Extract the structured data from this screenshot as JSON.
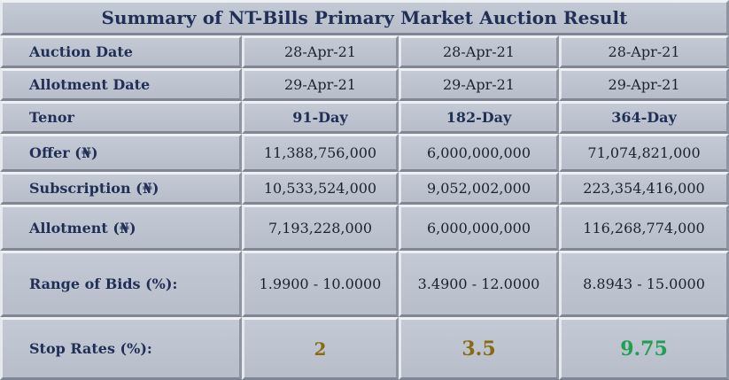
{
  "title": "Summary of NT-Bills Primary Market Auction Result",
  "rows": [
    {
      "label": "Auction Date",
      "values": [
        "28-Apr-21",
        "28-Apr-21",
        "28-Apr-21"
      ]
    },
    {
      "label": "Allotment Date",
      "values": [
        "29-Apr-21",
        "29-Apr-21",
        "29-Apr-21"
      ]
    },
    {
      "label": "Tenor",
      "values": [
        "91-Day",
        "182-Day",
        "364-Day"
      ]
    },
    {
      "label": "Offer (₦)",
      "values": [
        "11,388,756,000",
        "6,000,000,000",
        "71,074,821,000"
      ]
    },
    {
      "label": "Subscription (₦)",
      "values": [
        "10,533,524,000",
        "9,052,002,000",
        "223,354,416,000"
      ]
    },
    {
      "label": "Allotment (₦)",
      "values": [
        "7,193,228,000",
        "6,000,000,000",
        "116,268,774,000"
      ]
    },
    {
      "label": "Range of Bids (%):",
      "values": [
        "1.9900 - 10.0000",
        "3.4900 - 12.0000",
        "8.8943 - 15.0000"
      ]
    },
    {
      "label": "Stop Rates (%):",
      "values": [
        "2",
        "3.5",
        "9.75"
      ]
    }
  ],
  "colors": {
    "title_text": "#1f2f56",
    "label_text": "#1f2f56",
    "cell_bg": "#bcc2cd",
    "stop_rate_91": "#8a6a10",
    "stop_rate_182": "#8a6a10",
    "stop_rate_364": "#1fa04f"
  }
}
